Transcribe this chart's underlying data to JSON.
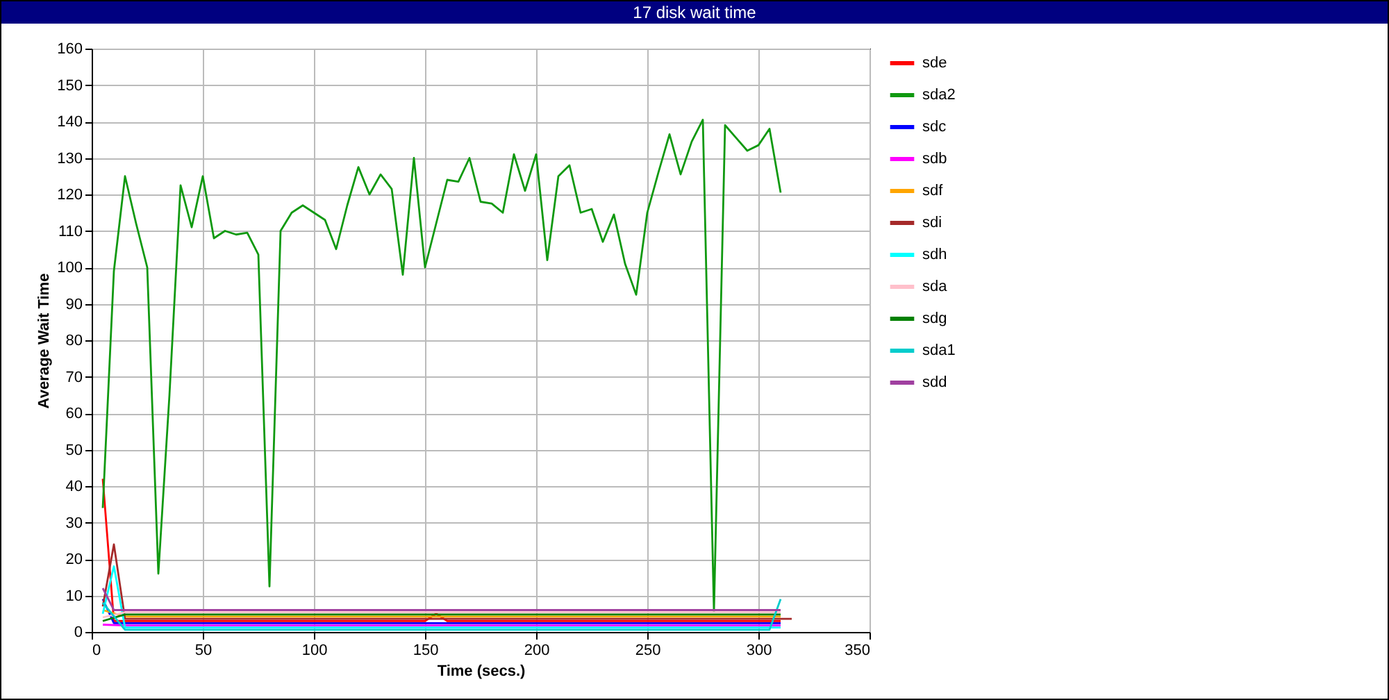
{
  "chart_data": {
    "type": "line",
    "title": "17 disk wait time",
    "xlabel": "Time (secs.)",
    "ylabel": "Average Wait Time",
    "xlim": [
      0,
      350
    ],
    "xticks": [
      0,
      50,
      100,
      150,
      200,
      250,
      300,
      350
    ],
    "ylim": [
      0,
      160
    ],
    "yticks": [
      0,
      10,
      20,
      30,
      40,
      50,
      60,
      70,
      80,
      90,
      100,
      110,
      120,
      130,
      140,
      150,
      160
    ],
    "grid": true,
    "legend": "right",
    "series": [
      {
        "name": "sde",
        "color": "#ff0000",
        "x": [
          5,
          10,
          15,
          150,
          155,
          160,
          310
        ],
        "values": [
          42,
          3,
          3,
          3,
          5,
          3,
          3
        ]
      },
      {
        "name": "sda2",
        "color": "#109910",
        "x": [
          5,
          10,
          15,
          20,
          25,
          30,
          35,
          40,
          45,
          50,
          55,
          60,
          65,
          70,
          75,
          80,
          85,
          90,
          95,
          100,
          105,
          110,
          115,
          120,
          125,
          130,
          135,
          140,
          145,
          150,
          155,
          160,
          165,
          170,
          175,
          180,
          185,
          190,
          195,
          200,
          205,
          210,
          215,
          220,
          225,
          230,
          235,
          240,
          245,
          250,
          255,
          260,
          265,
          270,
          275,
          280,
          285,
          290,
          295,
          300,
          305,
          310
        ],
        "values": [
          34,
          99,
          125,
          112,
          100,
          16,
          65,
          122.5,
          111,
          125,
          108,
          110,
          109,
          109.5,
          103.5,
          12.5,
          110,
          115,
          117,
          115,
          113,
          105,
          117,
          127.5,
          120,
          125.5,
          121.5,
          98,
          130,
          100,
          112,
          124,
          123.5,
          130,
          118,
          117.5,
          115,
          131,
          121,
          131,
          102,
          125,
          128,
          115,
          116,
          107,
          114.5,
          101,
          92.5,
          115,
          126,
          136.5,
          125.5,
          134.5,
          140.5,
          5.5,
          139,
          135.5,
          132,
          133.5,
          138,
          120.5
        ]
      },
      {
        "name": "sdc",
        "color": "#0000ff",
        "x": [
          5,
          10,
          15,
          310
        ],
        "values": [
          9,
          2.4,
          2.4,
          2.4
        ]
      },
      {
        "name": "sdb",
        "color": "#ff00ff",
        "x": [
          5,
          15,
          310
        ],
        "values": [
          2,
          1.8,
          1.8
        ]
      },
      {
        "name": "sdf",
        "color": "#ffa500",
        "x": [
          5,
          15,
          310
        ],
        "values": [
          6,
          4.2,
          4.2
        ]
      },
      {
        "name": "sdi",
        "color": "#a52a2a",
        "x": [
          5,
          10,
          15,
          315
        ],
        "values": [
          7,
          24,
          3.6,
          3.6
        ]
      },
      {
        "name": "sdh",
        "color": "#00ffff",
        "x": [
          5,
          10,
          15,
          310
        ],
        "values": [
          5,
          18,
          1.2,
          1.2
        ]
      },
      {
        "name": "sda",
        "color": "#ffc0cb",
        "x": [
          5,
          15,
          310
        ],
        "values": [
          4,
          5.4,
          5.4
        ]
      },
      {
        "name": "sdg",
        "color": "#008000",
        "x": [
          5,
          15,
          310
        ],
        "values": [
          3,
          4.8,
          4.8
        ]
      },
      {
        "name": "sda1",
        "color": "#00cccc",
        "x": [
          5,
          15,
          305,
          310
        ],
        "values": [
          8,
          0.6,
          0.6,
          9
        ]
      },
      {
        "name": "sdd",
        "color": "#a040a0",
        "x": [
          5,
          10,
          15,
          310
        ],
        "values": [
          12,
          6,
          6,
          6
        ]
      }
    ]
  }
}
